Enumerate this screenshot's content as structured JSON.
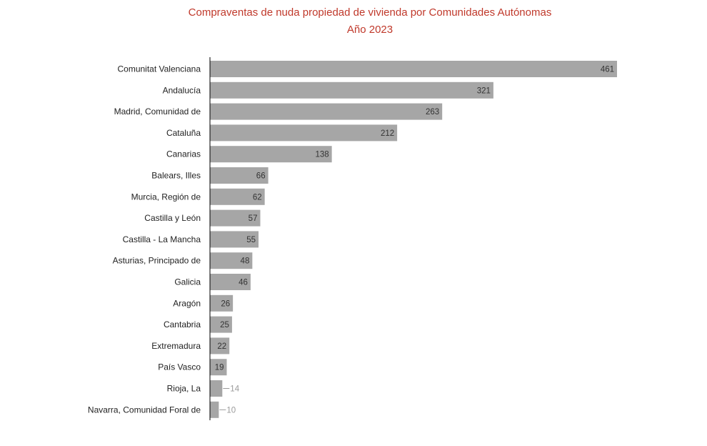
{
  "chart_data": {
    "type": "bar",
    "orientation": "horizontal",
    "title": "Compraventas de nuda propiedad de vivienda por Comunidades Autónomas",
    "subtitle": "Año 2023",
    "categories": [
      "Comunitat Valenciana",
      "Andalucía",
      "Madrid, Comunidad de",
      "Cataluña",
      "Canarias",
      "Balears, Illes",
      "Murcia, Región de",
      "Castilla y León",
      "Castilla - La Mancha",
      "Asturias, Principado de",
      "Galicia",
      "Aragón",
      "Cantabria",
      "Extremadura",
      "País Vasco",
      "Rioja, La",
      "Navarra, Comunidad Foral de"
    ],
    "values": [
      461,
      321,
      263,
      212,
      138,
      66,
      62,
      57,
      55,
      48,
      46,
      26,
      25,
      22,
      19,
      14,
      10
    ],
    "xlim": [
      0,
      461
    ],
    "grid": false,
    "legend": "none",
    "colors": {
      "bar": "#a6a6a6",
      "title": "#c0392b",
      "axis": "#000000",
      "label_text": "#222222",
      "outside_label": "#9a9a9a"
    }
  }
}
